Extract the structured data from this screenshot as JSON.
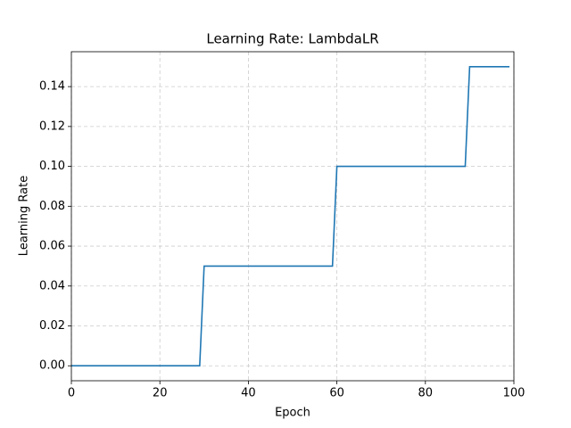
{
  "chart_data": {
    "type": "line",
    "title": "Learning Rate: LambdaLR",
    "xlabel": "Epoch",
    "ylabel": "Learning Rate",
    "x": [
      0,
      29,
      30,
      59,
      60,
      89,
      90,
      99
    ],
    "series": [
      {
        "color": "#1f77b4",
        "values": [
          0,
          0,
          0.05,
          0.05,
          0.1,
          0.1,
          0.15,
          0.15
        ]
      }
    ],
    "xlim": [
      0,
      100
    ],
    "xticks": [
      0,
      20,
      40,
      60,
      80,
      100
    ],
    "ylim": [
      -0.0075,
      0.1575
    ],
    "yticks": [
      {
        "value": 0,
        "label": "0.00"
      },
      {
        "value": 0.02,
        "label": "0.02"
      },
      {
        "value": 0.04,
        "label": "0.04"
      },
      {
        "value": 0.06,
        "label": "0.06"
      },
      {
        "value": 0.08,
        "label": "0.08"
      },
      {
        "value": 0.1,
        "label": "0.10"
      },
      {
        "value": 0.12,
        "label": "0.12"
      },
      {
        "value": 0.14,
        "label": "0.14"
      }
    ],
    "grid": true
  }
}
